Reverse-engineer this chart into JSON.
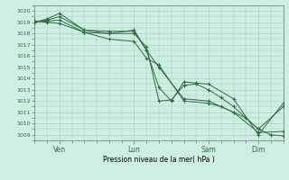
{
  "background_color": "#ceeee4",
  "grid_color": "#aaccc0",
  "line_color": "#2d6e3e",
  "ylabel_text": "Pression niveau de la mer( hPa )",
  "ylim": [
    1008.5,
    1020.5
  ],
  "yticks": [
    1009,
    1010,
    1011,
    1012,
    1013,
    1014,
    1015,
    1016,
    1017,
    1018,
    1019,
    1020
  ],
  "xtick_labels": [
    "Ven",
    "Lun",
    "Sam",
    "Dim"
  ],
  "xtick_positions": [
    24,
    96,
    168,
    216
  ],
  "xlim": [
    0,
    240
  ],
  "series": [
    {
      "x": [
        0,
        12,
        24,
        48,
        72,
        96,
        108,
        120,
        144,
        168,
        192,
        216,
        240
      ],
      "y": [
        1019.0,
        1019.2,
        1019.5,
        1018.3,
        1018.2,
        1018.2,
        1016.5,
        1015.0,
        1012.2,
        1012.0,
        1011.0,
        1009.2,
        1009.3
      ]
    },
    {
      "x": [
        0,
        12,
        24,
        48,
        72,
        96,
        108,
        120,
        132,
        144,
        156,
        168,
        192,
        216,
        240
      ],
      "y": [
        1019.0,
        1019.3,
        1019.8,
        1018.3,
        1018.0,
        1018.3,
        1016.5,
        1013.2,
        1012.0,
        1013.7,
        1013.6,
        1013.5,
        1012.2,
        1009.0,
        1011.8
      ]
    },
    {
      "x": [
        0,
        12,
        24,
        48,
        72,
        96,
        108,
        120,
        132,
        144,
        156,
        168,
        180,
        192,
        216,
        240
      ],
      "y": [
        1019.1,
        1019.1,
        1019.2,
        1018.1,
        1018.0,
        1018.0,
        1016.8,
        1012.0,
        1012.1,
        1013.4,
        1013.5,
        1013.0,
        1012.3,
        1011.5,
        1009.5,
        1011.5
      ]
    },
    {
      "x": [
        0,
        12,
        24,
        48,
        72,
        96,
        108,
        120,
        144,
        168,
        180,
        192,
        204,
        216,
        228,
        240
      ],
      "y": [
        1019.1,
        1019.0,
        1018.9,
        1018.1,
        1017.5,
        1017.3,
        1015.8,
        1015.2,
        1012.0,
        1011.8,
        1011.5,
        1011.0,
        1010.5,
        1009.5,
        1009.0,
        1008.9
      ]
    }
  ]
}
